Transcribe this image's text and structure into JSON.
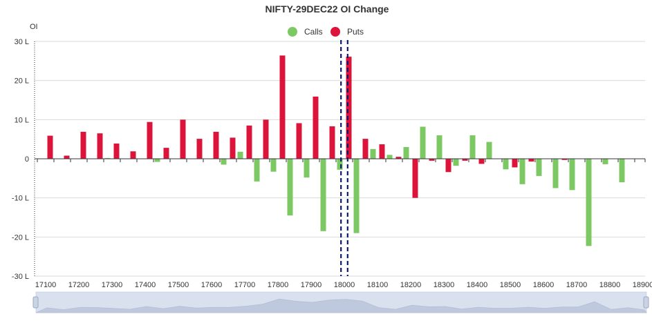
{
  "chart_data": {
    "type": "bar",
    "title": "NIFTY-29DEC22 OI Change",
    "ylabel": "OI",
    "ylim": [
      -30,
      30
    ],
    "y_unit": "L",
    "y_ticks": [
      "30 L",
      "20 L",
      "10 L",
      "0",
      "-10 L",
      "-20 L",
      "-30 L"
    ],
    "y_tick_values": [
      30,
      20,
      10,
      0,
      -10,
      -20,
      -30
    ],
    "x_tick_labels": [
      "17100",
      "17200",
      "17300",
      "17400",
      "17500",
      "17600",
      "17700",
      "17800",
      "17900",
      "18000",
      "18100",
      "18200",
      "18300",
      "18400",
      "18500",
      "18600",
      "18700",
      "18800",
      "18900"
    ],
    "categories": [
      17100,
      17150,
      17200,
      17250,
      17300,
      17350,
      17400,
      17450,
      17500,
      17550,
      17600,
      17650,
      17700,
      17750,
      17800,
      17850,
      17900,
      17950,
      18000,
      18050,
      18100,
      18150,
      18200,
      18250,
      18300,
      18350,
      18400,
      18450,
      18500,
      18550,
      18600,
      18650,
      18700,
      18750,
      18800,
      18850,
      18900
    ],
    "series": [
      {
        "name": "Calls",
        "color": "#7cc964",
        "values": [
          0,
          0,
          0,
          0,
          0.2,
          0,
          0,
          -0.8,
          0,
          0,
          0,
          -1.5,
          1.8,
          -5.8,
          -3.3,
          -14.5,
          -4.8,
          -18.5,
          -2.8,
          -19,
          2.5,
          1,
          3,
          8.2,
          6,
          -1.8,
          6,
          4.3,
          -2.7,
          -6.5,
          -4.4,
          -7.5,
          -8,
          -22.3,
          -1.4,
          -6,
          0
        ]
      },
      {
        "name": "Puts",
        "color": "#dc143c",
        "values": [
          5.9,
          0.8,
          6.9,
          6.5,
          3.9,
          1.9,
          9.4,
          2.8,
          10,
          5.1,
          6.9,
          5.4,
          8.5,
          10,
          26.4,
          9.1,
          15.9,
          8.3,
          26.1,
          5.1,
          3.7,
          0.5,
          -10,
          -0.5,
          -3.4,
          -0.5,
          -1.3,
          0,
          -2.2,
          -0.7,
          0,
          -0.3,
          0,
          0,
          0,
          0,
          0
        ]
      }
    ],
    "markers": [
      17990,
      18010
    ],
    "marker_color": "#0a1a6b",
    "grid": true,
    "legend_position": "top-center",
    "has_zoom_slider": true,
    "slider_color": "#d5dbe5"
  }
}
